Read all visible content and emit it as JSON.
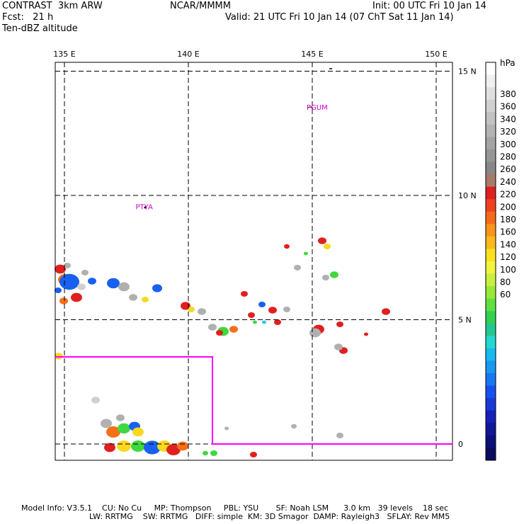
{
  "header": {
    "model": "CONTRAST  3km ARW",
    "center": "NCAR/MMMM",
    "init": "Init: 00 UTC Fri 10 Jan 14",
    "fcst": "Fcst:   21 h",
    "valid": "Valid: 21 UTC Fri 10 Jan 14 (07 ChT Sat 11 Jan 14)",
    "field": "Ten-dBZ altitude"
  },
  "map": {
    "lon_labels": [
      "135 E",
      "140 E",
      "145 E",
      "150 E"
    ],
    "lon_values": [
      135,
      140,
      145,
      150
    ],
    "lat_labels": [
      "15 N",
      "10 N",
      "5 N",
      "0"
    ],
    "lat_values": [
      15,
      10,
      5,
      0
    ],
    "stations": [
      {
        "name": "PGUM",
        "lon": 145.0,
        "lat": 13.5
      },
      {
        "name": "PTYA",
        "lon": 138.1,
        "lat": 9.5
      }
    ],
    "domain_box_color": "#ff00ff"
  },
  "colorbar": {
    "unit": "hPa",
    "labels": [
      "380",
      "360",
      "340",
      "320",
      "300",
      "280",
      "260",
      "240",
      "220",
      "200",
      "180",
      "160",
      "140",
      "120",
      "100",
      "80",
      "60"
    ],
    "colors": [
      "#ffffff",
      "#f0f0f0",
      "#e0e0e0",
      "#d0d0d0",
      "#c2c2c2",
      "#b4b4b4",
      "#a4a4a4",
      "#969696",
      "#888888",
      "#a87a6a",
      "#dd2020",
      "#f04020",
      "#f46a18",
      "#f89418",
      "#fcb81c",
      "#fce020",
      "#f0f43c",
      "#c8f040",
      "#98e838",
      "#60e040",
      "#30d050",
      "#20c890",
      "#20d8d0",
      "#18b8f0",
      "#1898f0",
      "#1878f0",
      "#1850f0",
      "#1838d8",
      "#1420b8",
      "#101898",
      "#0c1078",
      "#0a0a60"
    ]
  },
  "footer": {
    "line1": "Model Info: V3.5.1    CU: No Cu     MP: Thompson     PBL: YSU       SF: Noah LSM      3.0 km   39 levels    18 sec",
    "line2": "LW: RRTMG    SW: RRTMG   DIFF: simple  KM: 3D Smagor  DAMP: Rayleigh3   SFLAY: Rev MM5"
  }
}
